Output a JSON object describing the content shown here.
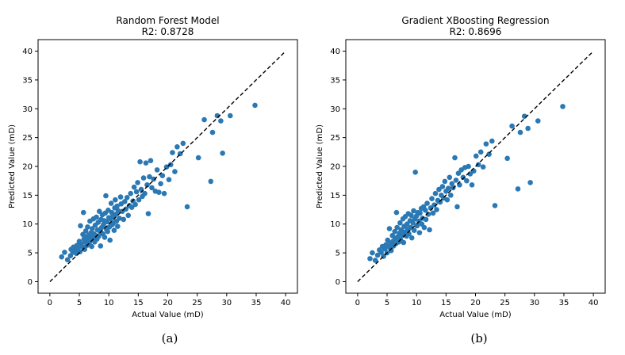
{
  "figure": {
    "captions": [
      "(a)",
      "(b)"
    ]
  },
  "colors": {
    "points": "#2a78b4",
    "reference_line": "#000000",
    "axes": "#000000",
    "background": "#ffffff"
  },
  "chart_data": [
    {
      "type": "scatter",
      "title": "Random Forest Model",
      "subtitle": "R2: 0.8728",
      "xlabel": "Actual Value (mD)",
      "ylabel": "Predicted Value (mD)",
      "xlim": [
        -2,
        42
      ],
      "ylim": [
        -2,
        42
      ],
      "xticks": [
        0,
        5,
        10,
        15,
        20,
        25,
        30,
        35,
        40
      ],
      "yticks": [
        0,
        5,
        10,
        15,
        20,
        25,
        30,
        35,
        40
      ],
      "grid": false,
      "reference_line": {
        "style": "dashed",
        "from": [
          0,
          0
        ],
        "to": [
          40,
          40
        ]
      },
      "points": [
        [
          2.0,
          4.3
        ],
        [
          2.5,
          5.1
        ],
        [
          3.0,
          3.8
        ],
        [
          3.5,
          4.5
        ],
        [
          3.6,
          5.6
        ],
        [
          3.9,
          5.1
        ],
        [
          4.0,
          6.0
        ],
        [
          4.3,
          5.5
        ],
        [
          4.5,
          4.9
        ],
        [
          4.6,
          6.3
        ],
        [
          4.8,
          5.8
        ],
        [
          5.0,
          7.0
        ],
        [
          5.1,
          5.2
        ],
        [
          5.2,
          9.7
        ],
        [
          5.3,
          6.6
        ],
        [
          5.5,
          6.1
        ],
        [
          5.6,
          8.2
        ],
        [
          5.7,
          12.0
        ],
        [
          5.8,
          7.4
        ],
        [
          5.9,
          5.6
        ],
        [
          6.0,
          6.9
        ],
        [
          6.1,
          8.8
        ],
        [
          6.2,
          7.8
        ],
        [
          6.3,
          6.3
        ],
        [
          6.4,
          9.5
        ],
        [
          6.5,
          7.1
        ],
        [
          6.6,
          8.1
        ],
        [
          6.7,
          6.8
        ],
        [
          6.8,
          10.5
        ],
        [
          6.9,
          7.4
        ],
        [
          7.0,
          8.5
        ],
        [
          7.1,
          6.1
        ],
        [
          7.2,
          9.2
        ],
        [
          7.3,
          7.7
        ],
        [
          7.4,
          10.9
        ],
        [
          7.5,
          8.3
        ],
        [
          7.6,
          6.9
        ],
        [
          7.7,
          9.8
        ],
        [
          7.8,
          8.0
        ],
        [
          7.9,
          11.2
        ],
        [
          8.0,
          7.4
        ],
        [
          8.1,
          9.0
        ],
        [
          8.2,
          10.3
        ],
        [
          8.3,
          7.9
        ],
        [
          8.4,
          12.2
        ],
        [
          8.5,
          8.7
        ],
        [
          8.6,
          6.2
        ],
        [
          8.7,
          10.8
        ],
        [
          8.8,
          9.4
        ],
        [
          8.9,
          11.6
        ],
        [
          9.0,
          8.3
        ],
        [
          9.1,
          9.9
        ],
        [
          9.2,
          10.6
        ],
        [
          9.3,
          7.7
        ],
        [
          9.4,
          11.9
        ],
        [
          9.5,
          14.9
        ],
        [
          9.6,
          9.1
        ],
        [
          9.7,
          10.4
        ],
        [
          9.8,
          8.7
        ],
        [
          9.9,
          12.4
        ],
        [
          10.0,
          11.1
        ],
        [
          10.1,
          9.5
        ],
        [
          10.2,
          7.2
        ],
        [
          10.3,
          10.9
        ],
        [
          10.4,
          13.6
        ],
        [
          10.5,
          12.0
        ],
        [
          10.6,
          9.9
        ],
        [
          10.7,
          11.4
        ],
        [
          10.8,
          10.2
        ],
        [
          10.9,
          8.9
        ],
        [
          11.0,
          12.8
        ],
        [
          11.1,
          14.2
        ],
        [
          11.2,
          11.7
        ],
        [
          11.3,
          10.5
        ],
        [
          11.4,
          13.1
        ],
        [
          11.5,
          9.6
        ],
        [
          11.6,
          12.3
        ],
        [
          11.8,
          11.0
        ],
        [
          12.0,
          14.7
        ],
        [
          12.1,
          13.5
        ],
        [
          12.3,
          12.2
        ],
        [
          12.5,
          10.8
        ],
        [
          12.7,
          13.9
        ],
        [
          12.9,
          12.6
        ],
        [
          13.1,
          14.6
        ],
        [
          13.3,
          11.5
        ],
        [
          13.5,
          13.2
        ],
        [
          13.7,
          15.3
        ],
        [
          13.9,
          12.9
        ],
        [
          14.1,
          14.0
        ],
        [
          14.3,
          16.4
        ],
        [
          14.5,
          13.4
        ],
        [
          14.7,
          15.6
        ],
        [
          14.9,
          17.2
        ],
        [
          15.1,
          14.2
        ],
        [
          15.3,
          20.8
        ],
        [
          15.5,
          16.0
        ],
        [
          15.7,
          14.8
        ],
        [
          15.9,
          18.0
        ],
        [
          16.1,
          15.3
        ],
        [
          16.3,
          20.6
        ],
        [
          16.5,
          16.8
        ],
        [
          16.7,
          11.8
        ],
        [
          16.9,
          18.2
        ],
        [
          17.1,
          21.0
        ],
        [
          17.3,
          16.3
        ],
        [
          17.6,
          17.8
        ],
        [
          17.9,
          15.7
        ],
        [
          18.2,
          19.4
        ],
        [
          18.5,
          15.5
        ],
        [
          18.8,
          17.0
        ],
        [
          19.1,
          18.4
        ],
        [
          19.4,
          15.3
        ],
        [
          19.8,
          19.9
        ],
        [
          20.2,
          17.7
        ],
        [
          20.5,
          20.3
        ],
        [
          20.8,
          22.4
        ],
        [
          21.2,
          19.1
        ],
        [
          21.6,
          23.4
        ],
        [
          22.1,
          22.2
        ],
        [
          22.6,
          24.0
        ],
        [
          23.3,
          13.0
        ],
        [
          25.2,
          21.5
        ],
        [
          26.2,
          28.1
        ],
        [
          27.3,
          17.4
        ],
        [
          27.6,
          25.9
        ],
        [
          28.4,
          28.8
        ],
        [
          29.0,
          27.9
        ],
        [
          29.3,
          22.3
        ],
        [
          30.6,
          28.8
        ],
        [
          34.8,
          30.6
        ]
      ]
    },
    {
      "type": "scatter",
      "title": "Gradient XBoosting Regression",
      "subtitle": "R2: 0.8696",
      "xlabel": "Actual Value (mD)",
      "ylabel": "Predicted Value (mD)",
      "xlim": [
        -2,
        42
      ],
      "ylim": [
        -2,
        42
      ],
      "xticks": [
        0,
        5,
        10,
        15,
        20,
        25,
        30,
        35,
        40
      ],
      "yticks": [
        0,
        5,
        10,
        15,
        20,
        25,
        30,
        35,
        40
      ],
      "grid": false,
      "reference_line": {
        "style": "dashed",
        "from": [
          0,
          0
        ],
        "to": [
          40,
          40
        ]
      },
      "points": [
        [
          2.1,
          4.0
        ],
        [
          2.5,
          5.0
        ],
        [
          3.0,
          3.7
        ],
        [
          3.4,
          4.6
        ],
        [
          3.7,
          5.5
        ],
        [
          4.0,
          5.1
        ],
        [
          4.2,
          6.1
        ],
        [
          4.4,
          4.4
        ],
        [
          4.6,
          5.7
        ],
        [
          4.8,
          6.4
        ],
        [
          5.0,
          5.0
        ],
        [
          5.1,
          7.2
        ],
        [
          5.3,
          6.0
        ],
        [
          5.4,
          9.2
        ],
        [
          5.6,
          6.7
        ],
        [
          5.7,
          5.4
        ],
        [
          5.9,
          8.0
        ],
        [
          6.0,
          7.0
        ],
        [
          6.1,
          6.2
        ],
        [
          6.3,
          8.7
        ],
        [
          6.4,
          7.5
        ],
        [
          6.5,
          6.6
        ],
        [
          6.6,
          12.0
        ],
        [
          6.7,
          9.4
        ],
        [
          6.8,
          7.8
        ],
        [
          7.0,
          6.9
        ],
        [
          7.1,
          8.4
        ],
        [
          7.2,
          10.2
        ],
        [
          7.3,
          7.3
        ],
        [
          7.4,
          9.0
        ],
        [
          7.6,
          8.1
        ],
        [
          7.7,
          10.9
        ],
        [
          7.8,
          6.8
        ],
        [
          7.9,
          9.6
        ],
        [
          8.0,
          8.6
        ],
        [
          8.1,
          11.3
        ],
        [
          8.3,
          7.9
        ],
        [
          8.4,
          10.0
        ],
        [
          8.5,
          9.1
        ],
        [
          8.6,
          11.8
        ],
        [
          8.7,
          8.3
        ],
        [
          8.9,
          10.6
        ],
        [
          9.0,
          9.4
        ],
        [
          9.1,
          11.5
        ],
        [
          9.2,
          7.6
        ],
        [
          9.4,
          10.2
        ],
        [
          9.5,
          12.3
        ],
        [
          9.6,
          8.9
        ],
        [
          9.7,
          10.9
        ],
        [
          9.8,
          19.0
        ],
        [
          10.0,
          11.4
        ],
        [
          10.1,
          9.7
        ],
        [
          10.2,
          12.0
        ],
        [
          10.4,
          10.5
        ],
        [
          10.5,
          8.5
        ],
        [
          10.6,
          11.9
        ],
        [
          10.8,
          12.7
        ],
        [
          10.9,
          10.0
        ],
        [
          11.0,
          11.0
        ],
        [
          11.2,
          13.0
        ],
        [
          11.3,
          9.4
        ],
        [
          11.5,
          12.4
        ],
        [
          11.6,
          10.8
        ],
        [
          11.8,
          13.6
        ],
        [
          12.0,
          11.7
        ],
        [
          12.2,
          9.0
        ],
        [
          12.4,
          12.8
        ],
        [
          12.6,
          14.4
        ],
        [
          12.8,
          11.9
        ],
        [
          13.0,
          13.3
        ],
        [
          13.2,
          15.3
        ],
        [
          13.4,
          12.5
        ],
        [
          13.6,
          14.1
        ],
        [
          13.8,
          16.0
        ],
        [
          14.0,
          13.8
        ],
        [
          14.2,
          15.0
        ],
        [
          14.4,
          16.5
        ],
        [
          14.6,
          14.5
        ],
        [
          14.8,
          17.4
        ],
        [
          15.0,
          15.7
        ],
        [
          15.2,
          14.2
        ],
        [
          15.4,
          16.2
        ],
        [
          15.6,
          18.1
        ],
        [
          15.8,
          15.0
        ],
        [
          16.0,
          17.0
        ],
        [
          16.2,
          16.3
        ],
        [
          16.5,
          21.5
        ],
        [
          16.7,
          17.6
        ],
        [
          16.9,
          13.0
        ],
        [
          17.1,
          18.8
        ],
        [
          17.3,
          16.8
        ],
        [
          17.6,
          19.4
        ],
        [
          17.9,
          18.1
        ],
        [
          18.2,
          19.8
        ],
        [
          18.5,
          17.5
        ],
        [
          18.8,
          20.0
        ],
        [
          19.1,
          18.7
        ],
        [
          19.4,
          16.8
        ],
        [
          19.7,
          19.2
        ],
        [
          20.1,
          21.8
        ],
        [
          20.5,
          20.3
        ],
        [
          20.9,
          22.5
        ],
        [
          21.3,
          19.9
        ],
        [
          21.8,
          23.9
        ],
        [
          22.3,
          22.1
        ],
        [
          22.8,
          24.4
        ],
        [
          23.3,
          13.2
        ],
        [
          25.4,
          21.4
        ],
        [
          26.2,
          27.0
        ],
        [
          27.2,
          16.1
        ],
        [
          27.6,
          25.9
        ],
        [
          28.3,
          28.7
        ],
        [
          28.9,
          26.6
        ],
        [
          29.3,
          17.2
        ],
        [
          30.6,
          27.9
        ],
        [
          34.8,
          30.4
        ]
      ]
    }
  ]
}
